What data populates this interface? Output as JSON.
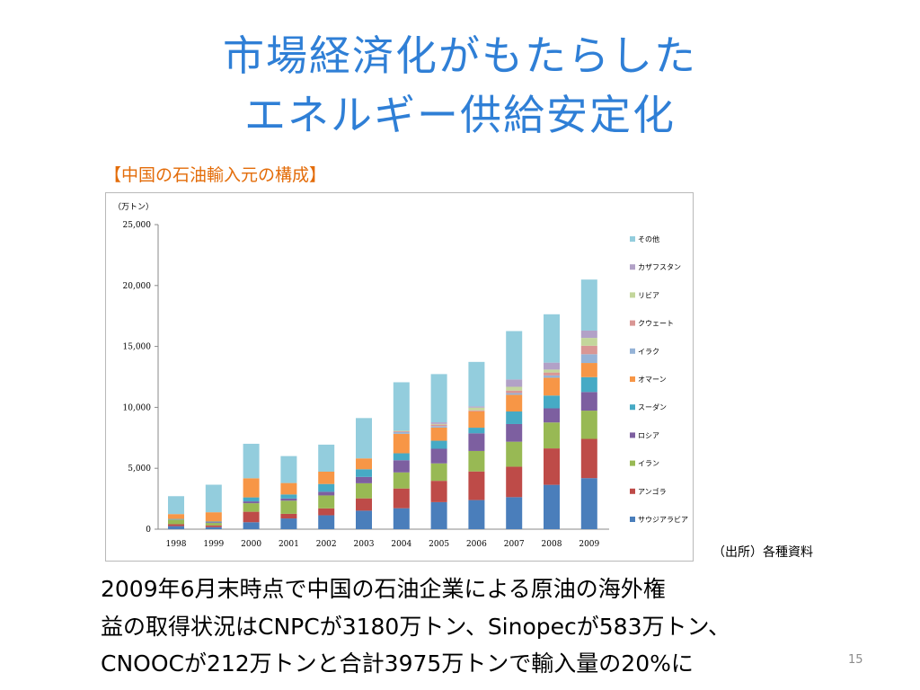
{
  "slide": {
    "title_line1": "市場経済化がもたらした",
    "title_line2": "エネルギー供給安定化",
    "chart_caption": "【中国の石油輸入元の構成】",
    "source": "（出所）各種資料",
    "body_line1": "2009年6月末時点で中国の石油企業による原油の海外権",
    "body_line2": "益の取得状況はCNPCが3180万トン、Sinopecが583万トン、",
    "body_line3": "CNOOCが212万トンと合計3975万トンで輸入量の20%に",
    "page_number": "15",
    "title_color": "#2f7fd6",
    "caption_color": "#e36c09"
  },
  "chart_data": {
    "type": "bar",
    "stacked": true,
    "unit_label": "（万トン）",
    "categories": [
      "1998",
      "1999",
      "2000",
      "2001",
      "2002",
      "2003",
      "2004",
      "2005",
      "2006",
      "2007",
      "2008",
      "2009"
    ],
    "ylim": [
      0,
      25000
    ],
    "yticks": [
      0,
      5000,
      10000,
      15000,
      20000,
      25000
    ],
    "ytick_labels": [
      "0",
      "5,000",
      "10,000",
      "15,000",
      "20,000",
      "25,000"
    ],
    "grid": false,
    "legend_position": "right",
    "series": [
      {
        "name": "サウジアラビア",
        "color": "#4a7ebb",
        "values": [
          250,
          170,
          570,
          880,
          1140,
          1520,
          1720,
          2220,
          2390,
          2630,
          3640,
          4190
        ]
      },
      {
        "name": "アンゴラ",
        "color": "#be4b48",
        "values": [
          160,
          140,
          860,
          380,
          570,
          1010,
          1620,
          1750,
          2350,
          2500,
          2990,
          3220
        ]
      },
      {
        "name": "イラン",
        "color": "#98b954",
        "values": [
          360,
          200,
          700,
          1080,
          1060,
          1240,
          1320,
          1430,
          1680,
          2050,
          2130,
          2320
        ]
      },
      {
        "name": "ロシア",
        "color": "#7d5fa0",
        "values": [
          20,
          60,
          150,
          180,
          300,
          520,
          1000,
          1200,
          1450,
          1450,
          1160,
          1530
        ]
      },
      {
        "name": "スーダン",
        "color": "#46aac5",
        "values": [
          50,
          60,
          330,
          330,
          640,
          630,
          570,
          660,
          460,
          1030,
          1050,
          1220
        ]
      },
      {
        "name": "オマーン",
        "color": "#f79646",
        "values": [
          400,
          760,
          1570,
          940,
          1010,
          890,
          1600,
          1080,
          1340,
          1370,
          1460,
          1160
        ]
      },
      {
        "name": "イラク",
        "color": "#95b3d7",
        "values": [
          0,
          0,
          0,
          0,
          0,
          0,
          150,
          120,
          0,
          140,
          190,
          720
        ]
      },
      {
        "name": "クウェート",
        "color": "#d99694",
        "values": [
          0,
          0,
          0,
          0,
          0,
          0,
          60,
          120,
          80,
          210,
          240,
          700
        ]
      },
      {
        "name": "リビア",
        "color": "#c3d69b",
        "values": [
          0,
          0,
          0,
          0,
          0,
          0,
          40,
          60,
          230,
          310,
          240,
          640
        ]
      },
      {
        "name": "カザフスタン",
        "color": "#b2a1c7",
        "values": [
          0,
          0,
          0,
          0,
          0,
          0,
          0,
          130,
          100,
          600,
          570,
          600
        ]
      },
      {
        "name": "その他",
        "color": "#93cddd",
        "values": [
          1470,
          2260,
          2830,
          2210,
          2220,
          3310,
          3980,
          3960,
          3650,
          3970,
          3970,
          4190
        ]
      }
    ]
  }
}
